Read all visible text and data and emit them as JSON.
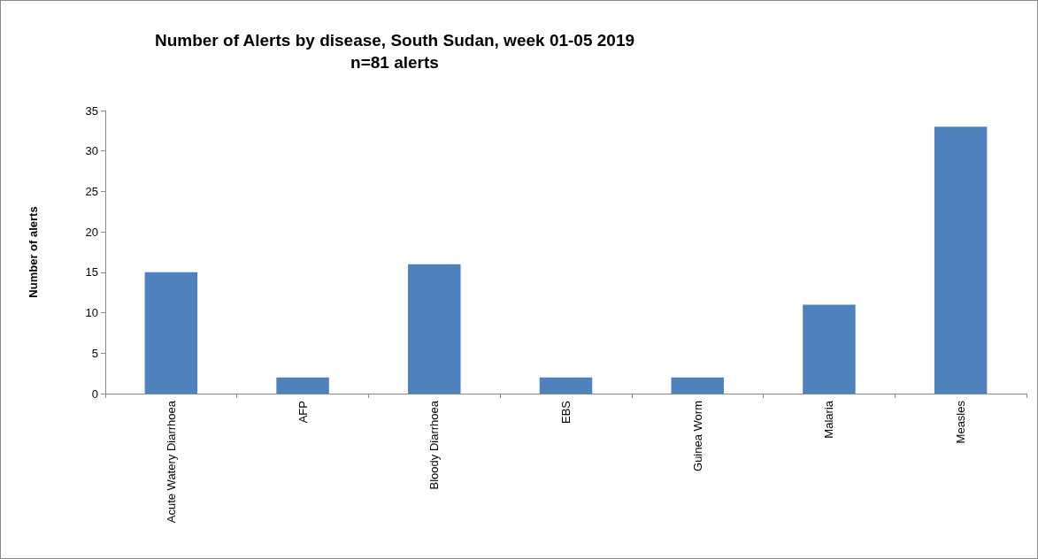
{
  "chart_data": {
    "type": "bar",
    "title": "Number of Alerts by disease, South Sudan, week 01-05 2019",
    "subtitle": "n=81 alerts",
    "ylabel": "Number of alerts",
    "categories": [
      "Acute Watery Diarrhoea",
      "AFP",
      "Bloody Diarrhoea",
      "EBS",
      "Guinea Worm",
      "Malaria",
      "Measles"
    ],
    "values": [
      15,
      2,
      16,
      2,
      2,
      11,
      33
    ],
    "color": "#4f81bd",
    "ylim": [
      0,
      35
    ],
    "yticks": [
      0,
      5,
      10,
      15,
      20,
      25,
      30,
      35
    ],
    "grid": false
  }
}
